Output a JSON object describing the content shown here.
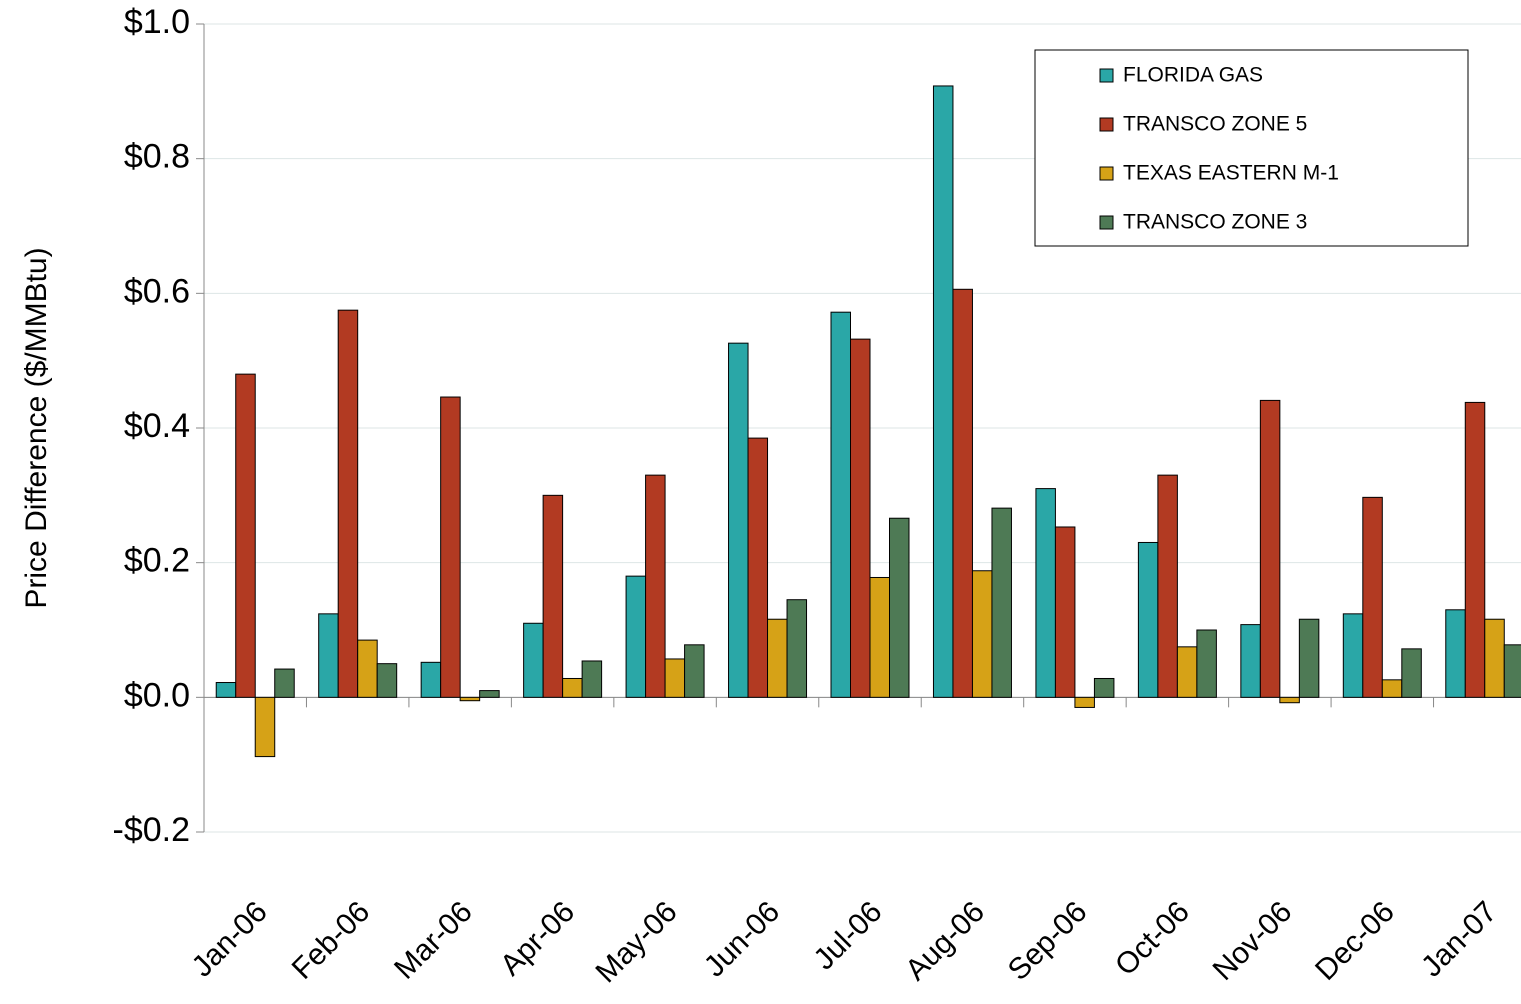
{
  "chart_data": {
    "type": "bar",
    "y_label": "Price Difference ($/MMBtu)",
    "categories": [
      "Jan-06",
      "Feb-06",
      "Mar-06",
      "Apr-06",
      "May-06",
      "Jun-06",
      "Jul-06",
      "Aug-06",
      "Sep-06",
      "Oct-06",
      "Nov-06",
      "Dec-06",
      "Jan-07"
    ],
    "series": [
      {
        "name": "FLORIDA GAS",
        "color": "#2aa7a7",
        "values": [
          0.022,
          0.124,
          0.052,
          0.11,
          0.18,
          0.526,
          0.572,
          0.908,
          0.31,
          0.23,
          0.108,
          0.124,
          0.13
        ]
      },
      {
        "name": "TRANSCO ZONE 5",
        "color": "#b23a22",
        "values": [
          0.48,
          0.575,
          0.446,
          0.3,
          0.33,
          0.385,
          0.532,
          0.606,
          0.253,
          0.33,
          0.441,
          0.297,
          0.438
        ]
      },
      {
        "name": "TEXAS EASTERN M-1",
        "color": "#d6a217",
        "values": [
          -0.088,
          0.085,
          -0.005,
          0.028,
          0.057,
          0.116,
          0.178,
          0.188,
          -0.015,
          0.075,
          -0.008,
          0.026,
          0.116
        ]
      },
      {
        "name": "TRANSCO ZONE 3",
        "color": "#4e7a55",
        "values": [
          0.042,
          0.05,
          0.01,
          0.054,
          0.078,
          0.145,
          0.266,
          0.281,
          0.028,
          0.1,
          0.116,
          0.072,
          0.078
        ]
      }
    ],
    "ylim": [
      -0.2,
      1.0
    ],
    "yticks": [
      {
        "value": -0.2,
        "label": "-$0.2"
      },
      {
        "value": 0,
        "label": "$0.0"
      },
      {
        "value": 0.2,
        "label": "$0.2"
      },
      {
        "value": 0.4,
        "label": "$0.4"
      },
      {
        "value": 0.6,
        "label": "$0.6"
      },
      {
        "value": 0.8,
        "label": "$0.8"
      },
      {
        "value": 1.0,
        "label": "$1.0"
      }
    ],
    "grid": true,
    "legend": "top-right"
  }
}
